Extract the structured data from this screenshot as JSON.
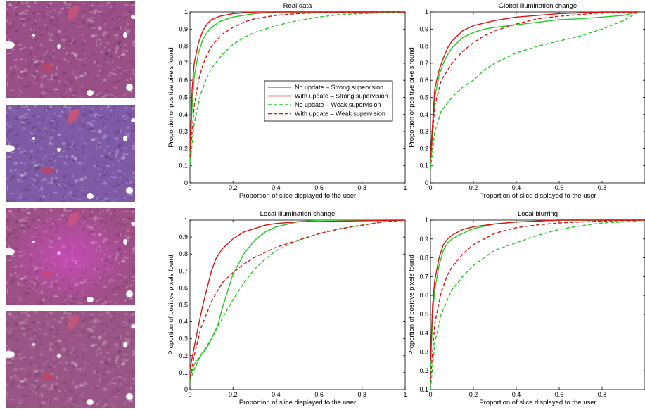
{
  "tiles": [
    {
      "tint": "#9a4f86",
      "overlay": "none"
    },
    {
      "tint": "#7e5aa7",
      "overlay": "none"
    },
    {
      "tint": "#9d4f86",
      "overlay": "radial"
    },
    {
      "tint": "#9a5587",
      "overlay": "blur"
    }
  ],
  "legend": {
    "items": [
      {
        "label": "No update – Strong supervision",
        "color": "#22cc22",
        "dash": false
      },
      {
        "label": "With update – Strong supervision",
        "color": "#dd1111",
        "dash": false
      },
      {
        "label": "No update – Weak supervision",
        "color": "#22cc22",
        "dash": true
      },
      {
        "label": "With update – Weak supervision",
        "color": "#dd1111",
        "dash": true
      }
    ]
  },
  "chart_data": [
    {
      "type": "line",
      "title": "Real data",
      "xlabel": "Proportion of slice displayed to the user",
      "ylabel": "Proportion of positive pixels found",
      "xlim": [
        0,
        1
      ],
      "ylim": [
        0,
        1
      ],
      "xticks": [
        0,
        0.2,
        0.4,
        0.6,
        0.8,
        1
      ],
      "yticks": [
        0,
        0.1,
        0.2,
        0.3,
        0.4,
        0.5,
        0.6,
        0.7,
        0.8,
        0.9,
        1
      ],
      "xticklabels": [
        "0",
        "0.2",
        "0.4",
        "0.6",
        "0.8",
        "1"
      ],
      "yticklabels": [
        "0",
        "0.1",
        "0.2",
        "0.3",
        "0.4",
        "0.5",
        "0.6",
        "0.7",
        "0.8",
        "0.9",
        "1"
      ],
      "series": [
        {
          "name": "No update – Strong supervision",
          "color": "#22cc22",
          "dash": false,
          "x": [
            0,
            0.01,
            0.02,
            0.04,
            0.06,
            0.08,
            0.1,
            0.14,
            0.2,
            0.3,
            0.4,
            0.6,
            1
          ],
          "y": [
            0.12,
            0.45,
            0.62,
            0.76,
            0.84,
            0.88,
            0.91,
            0.945,
            0.97,
            0.99,
            1,
            1,
            1
          ]
        },
        {
          "name": "With update – Strong supervision",
          "color": "#dd1111",
          "dash": false,
          "x": [
            0,
            0.01,
            0.02,
            0.04,
            0.06,
            0.08,
            0.1,
            0.14,
            0.2,
            0.3,
            1
          ],
          "y": [
            0.2,
            0.55,
            0.7,
            0.82,
            0.89,
            0.93,
            0.955,
            0.975,
            0.99,
            1,
            1
          ]
        },
        {
          "name": "No update – Weak supervision",
          "color": "#22cc22",
          "dash": true,
          "x": [
            0,
            0.02,
            0.05,
            0.08,
            0.1,
            0.15,
            0.2,
            0.25,
            0.3,
            0.4,
            0.5,
            0.6,
            0.7,
            0.8,
            1
          ],
          "y": [
            0.1,
            0.35,
            0.52,
            0.62,
            0.67,
            0.75,
            0.81,
            0.85,
            0.88,
            0.92,
            0.95,
            0.97,
            0.985,
            0.99,
            1
          ]
        },
        {
          "name": "With update – Weak supervision",
          "color": "#dd1111",
          "dash": true,
          "x": [
            0,
            0.02,
            0.04,
            0.06,
            0.08,
            0.1,
            0.15,
            0.2,
            0.25,
            0.3,
            0.4,
            0.5,
            0.6,
            0.8,
            1
          ],
          "y": [
            0.15,
            0.45,
            0.6,
            0.69,
            0.75,
            0.8,
            0.87,
            0.91,
            0.94,
            0.96,
            0.98,
            0.99,
            0.995,
            1,
            1
          ]
        }
      ]
    },
    {
      "type": "line",
      "title": "Global illumination change",
      "xlabel": "Proportion of slice displayed to the user",
      "ylabel": "Proportion of positive pixels found",
      "xlim": [
        0,
        1
      ],
      "ylim": [
        0,
        1
      ],
      "xticks": [
        0,
        0.2,
        0.4,
        0.6,
        0.8
      ],
      "yticks": [
        0,
        0.1,
        0.2,
        0.3,
        0.4,
        0.5,
        0.6,
        0.7,
        0.8,
        0.9,
        1
      ],
      "xticklabels": [
        "0",
        "0.2",
        "0.4",
        "0.6",
        "0.8"
      ],
      "yticklabels": [
        "0",
        "0.1",
        "0.2",
        "0.3",
        "0.4",
        "0.5",
        "0.6",
        "0.7",
        "0.8",
        "0.9",
        "1"
      ],
      "series": [
        {
          "name": "No update – Strong supervision",
          "color": "#22cc22",
          "dash": false,
          "x": [
            0,
            0.02,
            0.04,
            0.06,
            0.08,
            0.1,
            0.15,
            0.2,
            0.25,
            0.3,
            0.4,
            0.5,
            0.6,
            0.7,
            0.8,
            0.9,
            0.97
          ],
          "y": [
            0.1,
            0.5,
            0.63,
            0.7,
            0.75,
            0.79,
            0.85,
            0.88,
            0.9,
            0.91,
            0.925,
            0.94,
            0.955,
            0.96,
            0.97,
            0.98,
            1
          ]
        },
        {
          "name": "With update – Strong supervision",
          "color": "#dd1111",
          "dash": false,
          "x": [
            0,
            0.02,
            0.04,
            0.06,
            0.08,
            0.1,
            0.15,
            0.2,
            0.25,
            0.3,
            0.4,
            0.5,
            0.6,
            0.8,
            0.97
          ],
          "y": [
            0.15,
            0.55,
            0.66,
            0.73,
            0.79,
            0.83,
            0.89,
            0.92,
            0.935,
            0.95,
            0.97,
            0.98,
            0.99,
            1,
            1
          ]
        },
        {
          "name": "No update – Weak supervision",
          "color": "#22cc22",
          "dash": true,
          "x": [
            0,
            0.02,
            0.05,
            0.1,
            0.15,
            0.2,
            0.25,
            0.3,
            0.4,
            0.5,
            0.6,
            0.7,
            0.8,
            0.9,
            0.97
          ],
          "y": [
            0.08,
            0.3,
            0.42,
            0.5,
            0.56,
            0.6,
            0.66,
            0.7,
            0.76,
            0.8,
            0.83,
            0.86,
            0.9,
            0.95,
            1
          ]
        },
        {
          "name": "With update – Weak supervision",
          "color": "#dd1111",
          "dash": true,
          "x": [
            0,
            0.02,
            0.05,
            0.1,
            0.15,
            0.2,
            0.25,
            0.3,
            0.4,
            0.5,
            0.6,
            0.7,
            0.8,
            0.97
          ],
          "y": [
            0.12,
            0.45,
            0.6,
            0.7,
            0.77,
            0.82,
            0.86,
            0.89,
            0.93,
            0.96,
            0.975,
            0.985,
            0.995,
            1
          ]
        }
      ]
    },
    {
      "type": "line",
      "title": "Local illumination change",
      "xlabel": "Proportion of slice displayed to the user",
      "ylabel": "Proportion of positive pixels found",
      "xlim": [
        0,
        1
      ],
      "ylim": [
        0,
        1
      ],
      "xticks": [
        0,
        0.2,
        0.4,
        0.6,
        0.8,
        1
      ],
      "yticks": [
        0,
        0.1,
        0.2,
        0.3,
        0.4,
        0.5,
        0.6,
        0.7,
        0.8,
        0.9,
        1
      ],
      "xticklabels": [
        "0",
        "0.2",
        "0.4",
        "0.6",
        "0.8",
        "1"
      ],
      "yticklabels": [
        "0",
        "0.1",
        "0.2",
        "0.3",
        "0.4",
        "0.5",
        "0.6",
        "0.7",
        "0.8",
        "0.9",
        "1"
      ],
      "series": [
        {
          "name": "No update – Strong supervision",
          "color": "#22cc22",
          "dash": false,
          "x": [
            0,
            0.02,
            0.05,
            0.08,
            0.1,
            0.13,
            0.15,
            0.18,
            0.2,
            0.25,
            0.3,
            0.35,
            0.4,
            0.5,
            0.6,
            1
          ],
          "y": [
            0.07,
            0.15,
            0.2,
            0.25,
            0.3,
            0.38,
            0.48,
            0.6,
            0.68,
            0.8,
            0.88,
            0.93,
            0.96,
            0.99,
            1,
            1
          ]
        },
        {
          "name": "With update – Strong supervision",
          "color": "#dd1111",
          "dash": false,
          "x": [
            0,
            0.02,
            0.04,
            0.06,
            0.08,
            0.1,
            0.12,
            0.15,
            0.2,
            0.25,
            0.3,
            0.35,
            0.4,
            0.5,
            1
          ],
          "y": [
            0.12,
            0.25,
            0.38,
            0.5,
            0.6,
            0.7,
            0.77,
            0.83,
            0.89,
            0.93,
            0.95,
            0.97,
            0.98,
            0.99,
            1
          ]
        },
        {
          "name": "No update – Weak supervision",
          "color": "#22cc22",
          "dash": true,
          "x": [
            0,
            0.02,
            0.05,
            0.1,
            0.15,
            0.2,
            0.25,
            0.3,
            0.35,
            0.4,
            0.5,
            0.6,
            0.7,
            0.8,
            0.9,
            1
          ],
          "y": [
            0.05,
            0.12,
            0.2,
            0.3,
            0.42,
            0.53,
            0.63,
            0.71,
            0.77,
            0.82,
            0.88,
            0.92,
            0.95,
            0.97,
            0.99,
            1
          ]
        },
        {
          "name": "With update – Weak supervision",
          "color": "#dd1111",
          "dash": true,
          "x": [
            0,
            0.02,
            0.05,
            0.1,
            0.15,
            0.2,
            0.25,
            0.3,
            0.35,
            0.4,
            0.5,
            0.6,
            0.7,
            0.8,
            0.9,
            1
          ],
          "y": [
            0.07,
            0.2,
            0.36,
            0.52,
            0.63,
            0.69,
            0.74,
            0.78,
            0.81,
            0.84,
            0.88,
            0.92,
            0.95,
            0.97,
            0.99,
            1
          ]
        }
      ]
    },
    {
      "type": "line",
      "title": "Local blurring",
      "xlabel": "Proportion of slice displayed to the user",
      "ylabel": "Proportion of positive pixels found",
      "xlim": [
        0,
        1
      ],
      "ylim": [
        0.1,
        1
      ],
      "xticks": [
        0,
        0.2,
        0.4,
        0.6,
        0.8
      ],
      "yticks": [
        0.1,
        0.2,
        0.3,
        0.4,
        0.5,
        0.6,
        0.7,
        0.8,
        0.9,
        1
      ],
      "xticklabels": [
        "0",
        "0.2",
        "0.4",
        "0.6",
        "0.8"
      ],
      "yticklabels": [
        "0.1",
        "0.2",
        "0.3",
        "0.4",
        "0.5",
        "0.6",
        "0.7",
        "0.8",
        "0.9",
        "1"
      ],
      "series": [
        {
          "name": "No update – Strong supervision",
          "color": "#22cc22",
          "dash": false,
          "x": [
            0,
            0.01,
            0.02,
            0.04,
            0.06,
            0.08,
            0.1,
            0.15,
            0.2,
            0.3,
            0.4,
            0.6,
            1
          ],
          "y": [
            0.2,
            0.5,
            0.63,
            0.76,
            0.84,
            0.88,
            0.9,
            0.93,
            0.955,
            0.98,
            0.99,
            1,
            1
          ]
        },
        {
          "name": "With update – Strong supervision",
          "color": "#dd1111",
          "dash": false,
          "x": [
            0,
            0.01,
            0.02,
            0.04,
            0.06,
            0.08,
            0.1,
            0.15,
            0.2,
            0.3,
            0.4,
            0.6,
            1
          ],
          "y": [
            0.25,
            0.55,
            0.68,
            0.8,
            0.87,
            0.9,
            0.92,
            0.95,
            0.965,
            0.98,
            0.99,
            1,
            1
          ]
        },
        {
          "name": "No update – Weak supervision",
          "color": "#22cc22",
          "dash": true,
          "x": [
            0,
            0.02,
            0.05,
            0.08,
            0.1,
            0.15,
            0.2,
            0.25,
            0.3,
            0.4,
            0.5,
            0.6,
            0.7,
            0.8,
            0.9,
            1
          ],
          "y": [
            0.1,
            0.35,
            0.5,
            0.58,
            0.63,
            0.7,
            0.76,
            0.8,
            0.84,
            0.88,
            0.92,
            0.95,
            0.97,
            0.985,
            0.99,
            1
          ]
        },
        {
          "name": "With update – Weak supervision",
          "color": "#dd1111",
          "dash": true,
          "x": [
            0,
            0.02,
            0.05,
            0.08,
            0.1,
            0.15,
            0.2,
            0.25,
            0.3,
            0.4,
            0.5,
            0.6,
            0.8,
            1
          ],
          "y": [
            0.15,
            0.45,
            0.62,
            0.71,
            0.75,
            0.82,
            0.87,
            0.9,
            0.93,
            0.96,
            0.975,
            0.985,
            0.995,
            1
          ]
        }
      ]
    }
  ]
}
